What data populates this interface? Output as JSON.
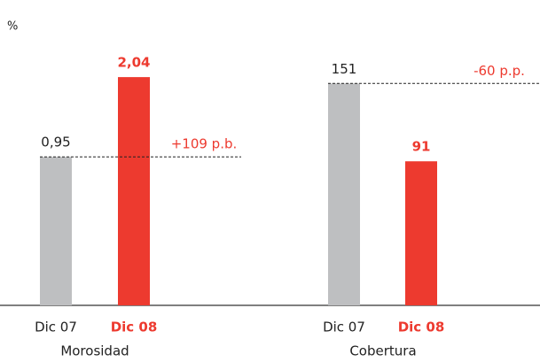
{
  "unit_label": "%",
  "chart_data": [
    {
      "type": "bar",
      "title": "Morosidad",
      "categories": [
        "Dic 07",
        "Dic 08"
      ],
      "values": [
        0.95,
        2.04
      ],
      "value_labels": [
        "0,95",
        "2,04"
      ],
      "colors": [
        "#bebfc1",
        "#ed3a2f"
      ],
      "ylim": [
        -1.08,
        2.61
      ],
      "annotation": "+109 p.b."
    },
    {
      "type": "bar",
      "title": "Cobertura",
      "categories": [
        "Dic 07",
        "Dic 08"
      ],
      "values": [
        151,
        91
      ],
      "value_labels": [
        "151",
        "91"
      ],
      "colors": [
        "#bebfc1",
        "#ed3a2f"
      ],
      "ylim": [
        -20,
        188
      ],
      "annotation": "-60 p.p."
    }
  ]
}
